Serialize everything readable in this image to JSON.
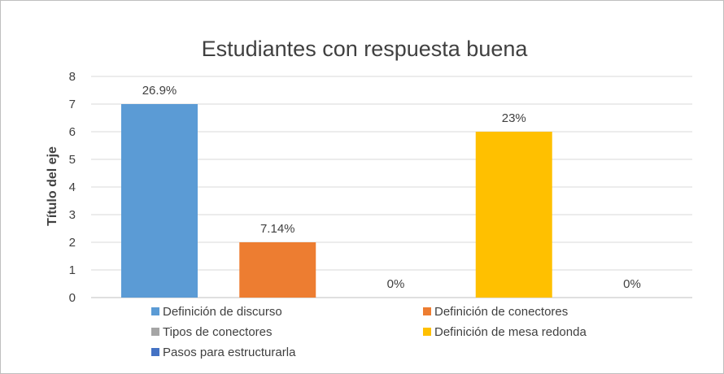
{
  "chart_data": {
    "type": "bar",
    "title": "Estudiantes con respuesta buena",
    "xlabel": "",
    "ylabel": "Título del eje",
    "ylim": [
      0,
      8
    ],
    "yticks": [
      "0",
      "1",
      "2",
      "3",
      "4",
      "5",
      "6",
      "7",
      "8"
    ],
    "grid": true,
    "legend_position": "bottom",
    "series": [
      {
        "name": "Definición de discurso",
        "value": 7,
        "label": "26.9%",
        "color": "#5b9bd5"
      },
      {
        "name": "Definición de conectores",
        "value": 2,
        "label": "7.14%",
        "color": "#ed7d31"
      },
      {
        "name": "Tipos de conectores",
        "value": 0,
        "label": "0%",
        "color": "#a5a5a5"
      },
      {
        "name": "Definición de mesa redonda",
        "value": 6,
        "label": "23%",
        "color": "#ffc000"
      },
      {
        "name": "Pasos para estructurarla",
        "value": 0,
        "label": "0%",
        "color": "#4472c4"
      }
    ]
  }
}
